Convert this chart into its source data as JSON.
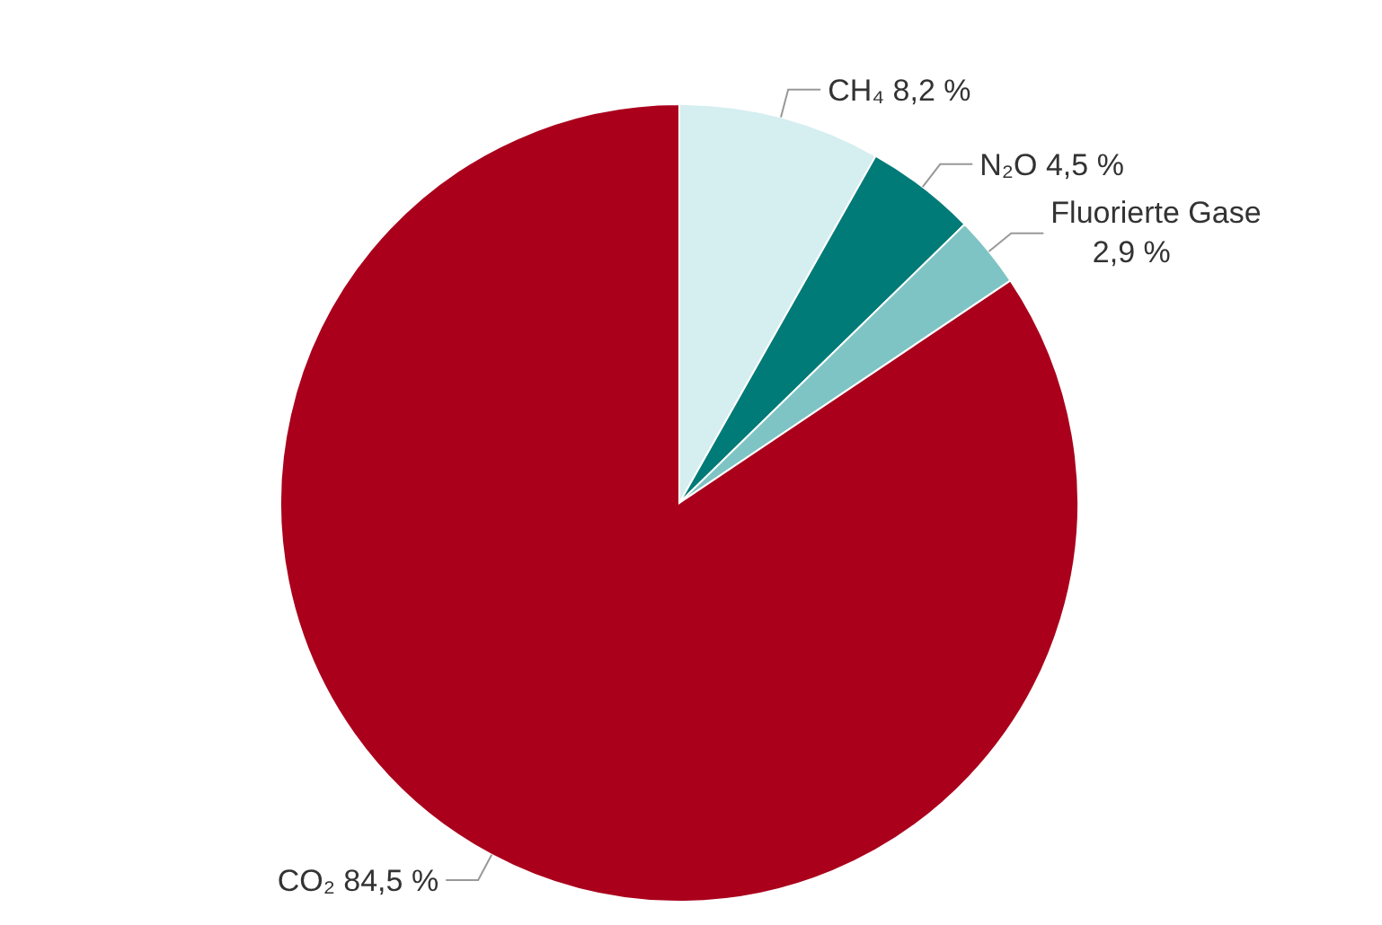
{
  "chart_data": {
    "type": "pie",
    "categories": [
      "CH₄",
      "N₂O",
      "Fluorierte Gase",
      "CO₂"
    ],
    "values": [
      8.2,
      4.5,
      2.9,
      84.5
    ],
    "value_labels": [
      "8,2 %",
      "4,5 %",
      "2,9 %",
      "84,5 %"
    ],
    "colors": [
      "#d5eef0",
      "#007b78",
      "#7fc4c4",
      "#aa001c"
    ],
    "legend": false
  }
}
